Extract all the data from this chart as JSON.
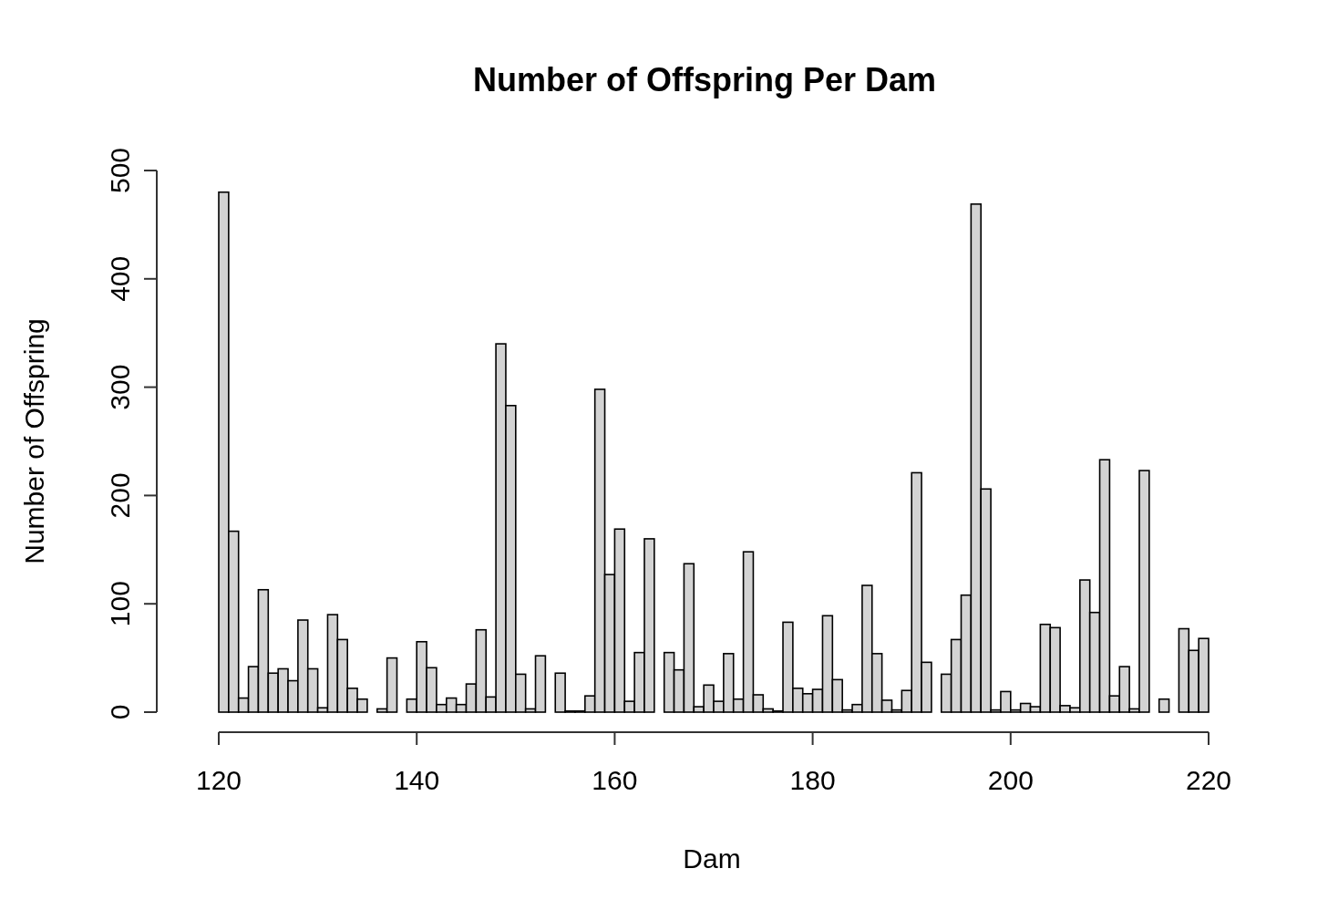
{
  "chart_data": {
    "type": "histogram",
    "title": "Number of Offspring Per Dam",
    "xlabel": "Dam",
    "ylabel": "Number of Offspring",
    "bins": [
      120,
      121,
      122,
      123,
      124,
      125,
      126,
      127,
      128,
      129,
      130,
      131,
      132,
      133,
      134,
      135,
      136,
      137,
      138,
      139,
      140,
      141,
      142,
      143,
      144,
      145,
      146,
      147,
      148,
      149,
      150,
      151,
      152,
      153,
      154,
      155,
      156,
      157,
      158,
      159,
      160,
      161,
      162,
      163,
      164,
      165,
      166,
      167,
      168,
      169,
      170,
      171,
      172,
      173,
      174,
      175,
      176,
      177,
      178,
      179,
      180,
      181,
      182,
      183,
      184,
      185,
      186,
      187,
      188,
      189,
      190,
      191,
      192,
      193,
      194,
      195,
      196,
      197,
      198,
      199,
      200,
      201,
      202,
      203,
      204,
      205,
      206,
      207,
      208,
      209,
      210,
      211,
      212,
      213,
      214,
      215,
      216,
      217,
      218,
      219,
      220
    ],
    "values": [
      480,
      167,
      13,
      42,
      113,
      36,
      40,
      29,
      85,
      40,
      4,
      90,
      67,
      22,
      12,
      0,
      3,
      50,
      0,
      12,
      65,
      41,
      7,
      13,
      7,
      26,
      76,
      14,
      340,
      283,
      35,
      3,
      52,
      0,
      36,
      1,
      1,
      15,
      298,
      127,
      169,
      10,
      55,
      160,
      0,
      55,
      39,
      137,
      5,
      25,
      10,
      54,
      12,
      148,
      16,
      3,
      1,
      83,
      22,
      17,
      21,
      89,
      30,
      2,
      7,
      117,
      54,
      11,
      2,
      20,
      221,
      46,
      0,
      35,
      67,
      108,
      469,
      206,
      2,
      19,
      2,
      8,
      5,
      81,
      78,
      6,
      4,
      122,
      92,
      233,
      15,
      42,
      3,
      223,
      0,
      12,
      0,
      77,
      57,
      68
    ],
    "color": "#d3d3d3",
    "xlim": [
      120,
      220
    ],
    "xticks": [
      120,
      140,
      160,
      180,
      200,
      220
    ],
    "ylim": [
      0,
      500
    ],
    "yticks": [
      0,
      100,
      200,
      300,
      400,
      500
    ],
    "grid": false
  }
}
